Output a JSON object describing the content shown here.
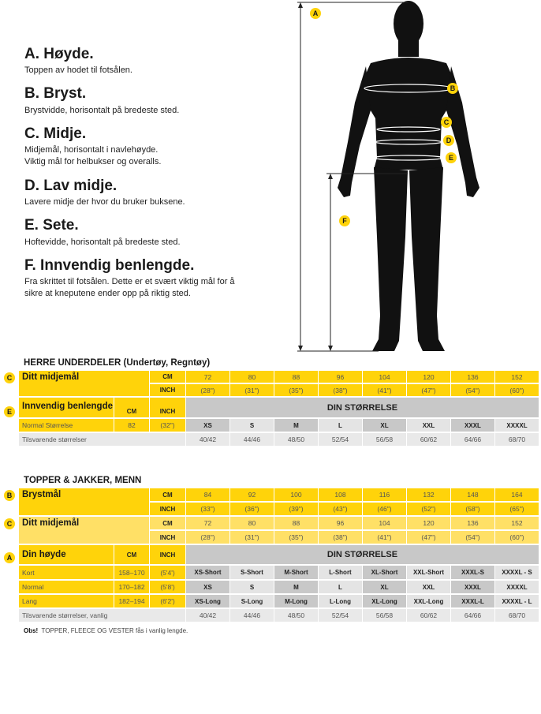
{
  "measures": [
    {
      "title": "A. Høyde.",
      "desc": "Toppen av hodet til fotsålen."
    },
    {
      "title": "B. Bryst.",
      "desc": "Brystvidde, horisontalt på bredeste sted."
    },
    {
      "title": "C. Midje.",
      "desc": "Midjemål, horisontalt i navlehøyde.\nViktig mål for helbukser og overalls."
    },
    {
      "title": "D. Lav midje.",
      "desc": "Lavere midje der hvor du bruker buksene."
    },
    {
      "title": "E. Sete.",
      "desc": "Hoftevidde, horisontalt på bredeste sted."
    },
    {
      "title": "F. Innvendig benlengde.",
      "desc": "Fra skrittet til fotsålen. Dette er et svært viktig mål for å sikre at kneputene ender opp på riktig sted."
    }
  ],
  "figure": {
    "labels": [
      "A",
      "B",
      "C",
      "D",
      "E",
      "F"
    ]
  },
  "colors": {
    "yellow": "#ffd30a",
    "light_yellow": "#ffe066",
    "dark_gray": "#c8c8c8",
    "light_gray": "#e4e4e4"
  },
  "bottoms": {
    "title": "HERRE UNDERDELER (Undertøy, Regntøy)",
    "waist": {
      "badge": "C",
      "label": "Ditt midjemål",
      "cm_label": "CM",
      "inch_label": "INCH",
      "cm": [
        "72",
        "80",
        "88",
        "96",
        "104",
        "120",
        "136",
        "152"
      ],
      "inch": [
        "(28\")",
        "(31\")",
        "(35\")",
        "(38\")",
        "(41\")",
        "(47\")",
        "(54\")",
        "(60\")"
      ]
    },
    "inseam": {
      "badge": "E",
      "label": "Innvendig benlengde",
      "cm_label": "CM",
      "inch_label": "INCH",
      "header": "DIN STØRRELSE",
      "row": {
        "label": "Normal Størrelse",
        "cm": "82",
        "inch": "(32\")",
        "sizes": [
          "XS",
          "S",
          "M",
          "L",
          "XL",
          "XXL",
          "XXXL",
          "XXXXL"
        ]
      }
    },
    "equivalent": {
      "label": "Tilsvarende størrelser",
      "values": [
        "40/42",
        "44/46",
        "48/50",
        "52/54",
        "56/58",
        "60/62",
        "64/66",
        "68/70"
      ]
    }
  },
  "tops": {
    "title": "TOPPER & JAKKER, MENN",
    "chest": {
      "badge": "B",
      "label": "Brystmål",
      "cm_label": "CM",
      "inch_label": "INCH",
      "cm": [
        "84",
        "92",
        "100",
        "108",
        "116",
        "132",
        "148",
        "164"
      ],
      "inch": [
        "(33\")",
        "(36\")",
        "(39\")",
        "(43\")",
        "(46\")",
        "(52\")",
        "(58\")",
        "(65\")"
      ]
    },
    "waist": {
      "badge": "C",
      "label": "Ditt midjemål",
      "cm_label": "CM",
      "inch_label": "INCH",
      "cm": [
        "72",
        "80",
        "88",
        "96",
        "104",
        "120",
        "136",
        "152"
      ],
      "inch": [
        "(28\")",
        "(31\")",
        "(35\")",
        "(38\")",
        "(41\")",
        "(47\")",
        "(54\")",
        "(60\")"
      ]
    },
    "height": {
      "badge": "A",
      "label": "Din høyde",
      "cm_label": "CM",
      "inch_label": "INCH",
      "header": "DIN STØRRELSE",
      "rows": [
        {
          "label": "Kort",
          "cm": "158–170",
          "inch": "(5'4')",
          "sizes": [
            "XS-Short",
            "S-Short",
            "M-Short",
            "L-Short",
            "XL-Short",
            "XXL-Short",
            "XXXL-S",
            "XXXXL - S"
          ]
        },
        {
          "label": "Normal",
          "cm": "170–182",
          "inch": "(5'8')",
          "sizes": [
            "XS",
            "S",
            "M",
            "L",
            "XL",
            "XXL",
            "XXXL",
            "XXXXL"
          ]
        },
        {
          "label": "Lang",
          "cm": "182–194",
          "inch": "(6'2')",
          "sizes": [
            "XS-Long",
            "S-Long",
            "M-Long",
            "L-Long",
            "XL-Long",
            "XXL-Long",
            "XXXL-L",
            "XXXXL - L"
          ]
        }
      ]
    },
    "equivalent": {
      "label": "Tilsvarende størrelser, vanlig",
      "values": [
        "40/42",
        "44/46",
        "48/50",
        "52/54",
        "56/58",
        "60/62",
        "64/66",
        "68/70"
      ]
    }
  },
  "note": {
    "bold": "Obs!",
    "text": "TOPPER, FLEECE OG VESTER fås i vanlig lengde."
  }
}
